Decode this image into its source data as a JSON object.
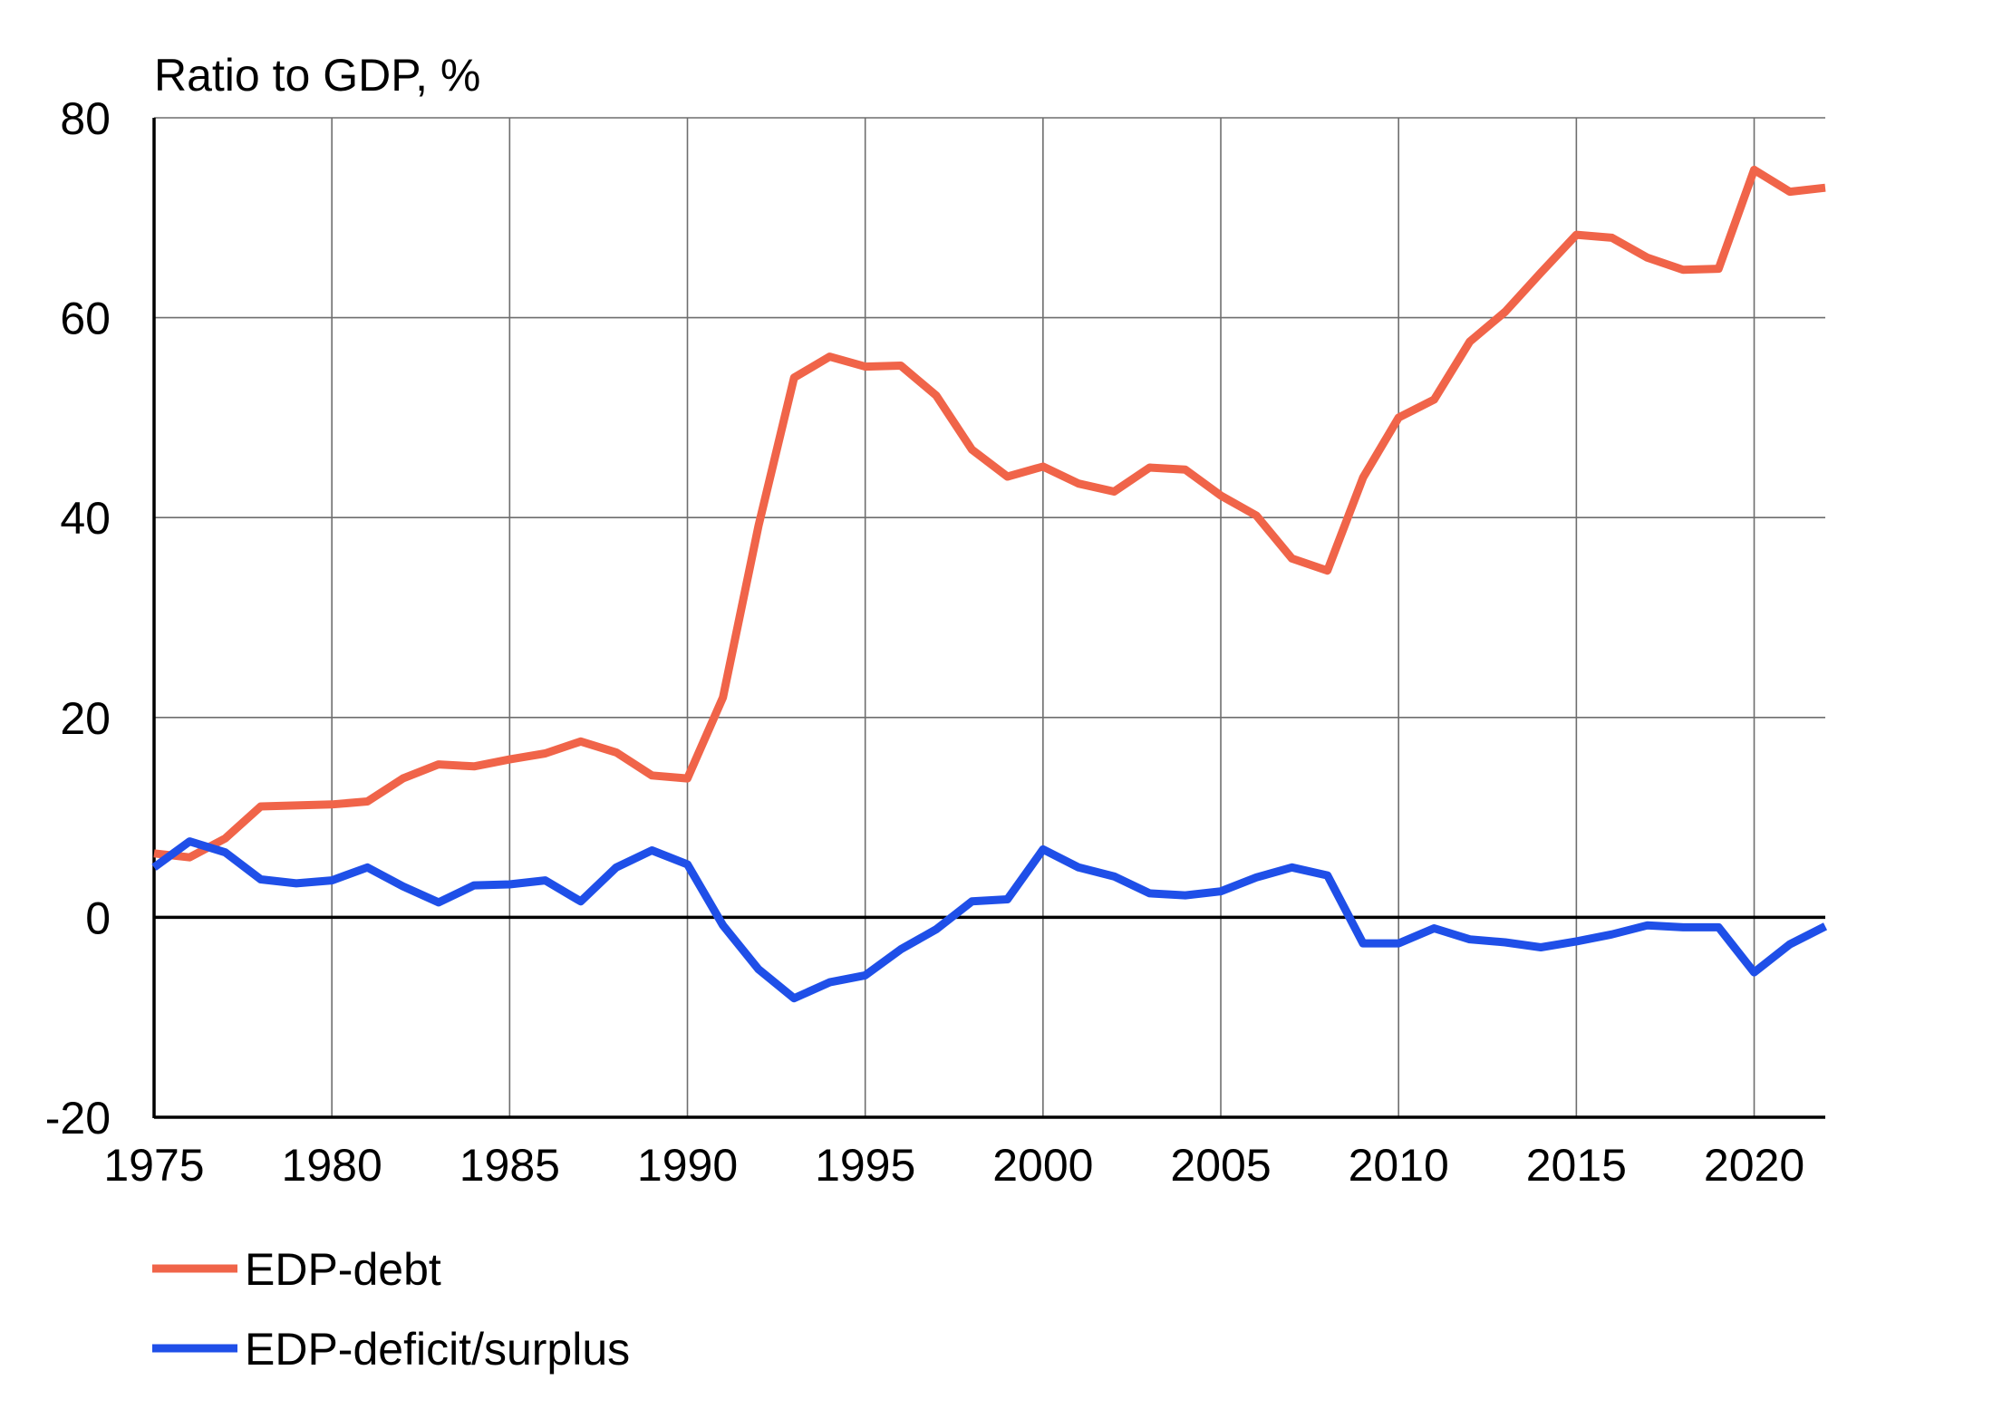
{
  "chart_data": {
    "type": "line",
    "title": "",
    "ylabel": "Ratio to GDP, %",
    "xlabel": "",
    "xlim": [
      1975,
      2022
    ],
    "ylim": [
      -20,
      80
    ],
    "x_ticks": [
      1975,
      1980,
      1985,
      1990,
      1995,
      2000,
      2005,
      2010,
      2015,
      2020
    ],
    "y_ticks": [
      -20,
      0,
      20,
      40,
      60,
      80
    ],
    "x_tick_labels": [
      "1975",
      "1980",
      "1985",
      "1990",
      "1995",
      "2000",
      "2005",
      "2010",
      "2015",
      "2020"
    ],
    "y_tick_labels": [
      "-20",
      "0",
      "20",
      "40",
      "60",
      "80"
    ],
    "grid": true,
    "legend_position": "bottom-left",
    "x": [
      1975,
      1976,
      1977,
      1978,
      1979,
      1980,
      1981,
      1982,
      1983,
      1984,
      1985,
      1986,
      1987,
      1988,
      1989,
      1990,
      1991,
      1992,
      1993,
      1994,
      1995,
      1996,
      1997,
      1998,
      1999,
      2000,
      2001,
      2002,
      2003,
      2004,
      2005,
      2006,
      2007,
      2008,
      2009,
      2010,
      2011,
      2012,
      2013,
      2014,
      2015,
      2016,
      2017,
      2018,
      2019,
      2020,
      2021,
      2022
    ],
    "series": [
      {
        "name": "EDP-debt",
        "color": "#f06449",
        "values": [
          6.4,
          6.0,
          7.9,
          11.1,
          11.2,
          11.3,
          11.6,
          13.9,
          15.3,
          15.1,
          15.8,
          16.4,
          17.6,
          16.5,
          14.2,
          13.9,
          22.0,
          39.2,
          54.0,
          56.1,
          55.1,
          55.2,
          52.2,
          46.8,
          44.1,
          45.1,
          43.4,
          42.6,
          45.0,
          44.8,
          42.2,
          40.2,
          35.9,
          34.7,
          44.0,
          50.0,
          51.8,
          57.6,
          60.6,
          64.5,
          68.3,
          68.0,
          66.0,
          64.8,
          64.9,
          74.8,
          72.6,
          73.0
        ]
      },
      {
        "name": "EDP-deficit/surplus",
        "color": "#1f4fe8",
        "values": [
          5.0,
          7.6,
          6.5,
          3.8,
          3.4,
          3.7,
          5.0,
          3.1,
          1.5,
          3.2,
          3.3,
          3.7,
          1.6,
          5.0,
          6.7,
          5.3,
          -0.8,
          -5.2,
          -8.1,
          -6.5,
          -5.8,
          -3.2,
          -1.2,
          1.6,
          1.8,
          6.8,
          5.0,
          4.1,
          2.4,
          2.2,
          2.6,
          4.0,
          5.0,
          4.2,
          -2.6,
          -2.6,
          -1.1,
          -2.2,
          -2.5,
          -3.0,
          -2.4,
          -1.7,
          -0.8,
          -1.0,
          -1.0,
          -5.5,
          -2.7,
          -0.9
        ]
      }
    ]
  }
}
